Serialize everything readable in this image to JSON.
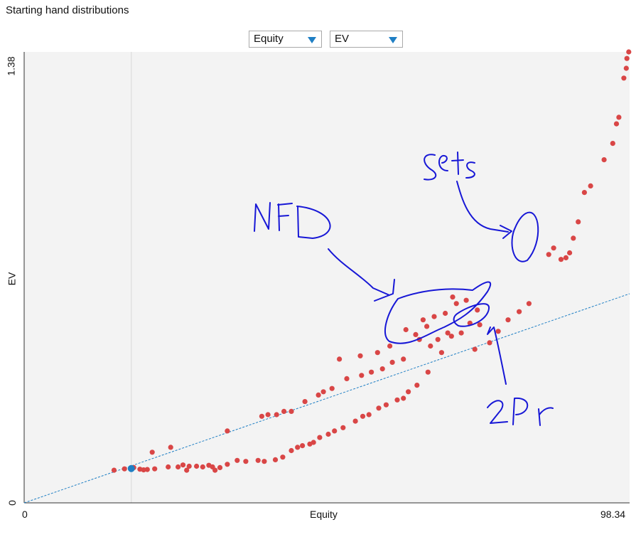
{
  "title": "Starting hand distributions",
  "controls": {
    "x_select": "Equity",
    "y_select": "EV"
  },
  "colors": {
    "plot_bg": "#f3f3f3",
    "point_red": "#d94646",
    "point_blue": "#1f7fc4",
    "trend_line": "#1f7fc4",
    "ink": "#1717d6"
  },
  "chart_data": {
    "type": "scatter",
    "xlabel": "Equity",
    "ylabel": "EV",
    "xlim": [
      0,
      98.34
    ],
    "ylim": [
      0,
      1.38
    ],
    "x_tick_labels": [
      "0",
      "98.34"
    ],
    "y_tick_labels": [
      "0",
      "1.38"
    ],
    "reference_x": 17.4,
    "trend_line": [
      [
        0,
        0
      ],
      [
        98.34,
        0.64
      ]
    ],
    "highlight_point": [
      17.4,
      0.105
    ],
    "series": [
      {
        "points": [
          [
            14.6,
            0.1
          ],
          [
            16.3,
            0.104
          ],
          [
            17.8,
            0.108
          ],
          [
            18.8,
            0.103
          ],
          [
            19.4,
            0.101
          ],
          [
            20.0,
            0.102
          ],
          [
            21.2,
            0.104
          ],
          [
            23.4,
            0.11
          ],
          [
            25.0,
            0.11
          ],
          [
            25.8,
            0.116
          ],
          [
            26.4,
            0.1
          ],
          [
            26.8,
            0.112
          ],
          [
            28.0,
            0.112
          ],
          [
            29.0,
            0.11
          ],
          [
            30.0,
            0.115
          ],
          [
            30.6,
            0.11
          ],
          [
            31.0,
            0.1
          ],
          [
            31.8,
            0.108
          ],
          [
            33.0,
            0.118
          ],
          [
            34.6,
            0.13
          ],
          [
            36.0,
            0.127
          ],
          [
            38.0,
            0.13
          ],
          [
            39.0,
            0.127
          ],
          [
            40.8,
            0.132
          ],
          [
            42.0,
            0.14
          ],
          [
            43.4,
            0.16
          ],
          [
            44.4,
            0.17
          ],
          [
            45.2,
            0.175
          ],
          [
            46.4,
            0.18
          ],
          [
            47.0,
            0.185
          ],
          [
            48.0,
            0.2
          ],
          [
            49.4,
            0.21
          ],
          [
            50.4,
            0.22
          ],
          [
            51.8,
            0.23
          ],
          [
            53.8,
            0.25
          ],
          [
            55.0,
            0.265
          ],
          [
            56.0,
            0.27
          ],
          [
            57.6,
            0.29
          ],
          [
            58.8,
            0.3
          ],
          [
            60.6,
            0.315
          ],
          [
            61.6,
            0.32
          ],
          [
            62.4,
            0.34
          ],
          [
            63.8,
            0.36
          ],
          [
            65.6,
            0.4
          ],
          [
            67.8,
            0.46
          ],
          [
            69.4,
            0.51
          ],
          [
            71.0,
            0.52
          ],
          [
            73.2,
            0.47
          ],
          [
            75.6,
            0.49
          ],
          [
            77.0,
            0.525
          ],
          [
            78.6,
            0.56
          ],
          [
            80.4,
            0.585
          ],
          [
            82.0,
            0.61
          ],
          [
            85.2,
            0.76
          ],
          [
            86.0,
            0.78
          ],
          [
            87.2,
            0.745
          ],
          [
            88.0,
            0.75
          ],
          [
            88.6,
            0.765
          ],
          [
            89.2,
            0.81
          ],
          [
            90.0,
            0.86
          ],
          [
            91.0,
            0.95
          ],
          [
            92.0,
            0.97
          ],
          [
            94.2,
            1.05
          ],
          [
            95.6,
            1.1
          ],
          [
            96.2,
            1.16
          ],
          [
            96.6,
            1.18
          ],
          [
            97.4,
            1.3
          ],
          [
            97.8,
            1.33
          ],
          [
            97.9,
            1.36
          ],
          [
            98.2,
            1.38
          ],
          [
            20.8,
            0.155
          ],
          [
            23.8,
            0.17
          ],
          [
            33.0,
            0.22
          ],
          [
            38.6,
            0.265
          ],
          [
            39.6,
            0.27
          ],
          [
            41.0,
            0.27
          ],
          [
            42.2,
            0.28
          ],
          [
            43.4,
            0.28
          ],
          [
            45.6,
            0.31
          ],
          [
            47.8,
            0.33
          ],
          [
            48.6,
            0.34
          ],
          [
            50.0,
            0.35
          ],
          [
            52.4,
            0.38
          ],
          [
            54.8,
            0.39
          ],
          [
            56.4,
            0.4
          ],
          [
            58.2,
            0.41
          ],
          [
            59.8,
            0.43
          ],
          [
            61.6,
            0.44
          ],
          [
            64.2,
            0.5
          ],
          [
            66.0,
            0.48
          ],
          [
            67.2,
            0.5
          ],
          [
            68.8,
            0.52
          ],
          [
            51.2,
            0.44
          ],
          [
            54.6,
            0.45
          ],
          [
            57.4,
            0.46
          ],
          [
            59.4,
            0.48
          ],
          [
            62.0,
            0.53
          ],
          [
            64.8,
            0.56
          ],
          [
            66.6,
            0.57
          ],
          [
            68.4,
            0.58
          ],
          [
            70.2,
            0.61
          ],
          [
            72.4,
            0.55
          ],
          [
            74.0,
            0.545
          ],
          [
            63.6,
            0.515
          ],
          [
            65.4,
            0.54
          ],
          [
            69.6,
            0.63
          ],
          [
            71.8,
            0.62
          ],
          [
            73.6,
            0.59
          ]
        ]
      }
    ]
  },
  "annotations": {
    "nfd": "NFD",
    "sets": "Sets",
    "two_pr": "2Pr"
  }
}
